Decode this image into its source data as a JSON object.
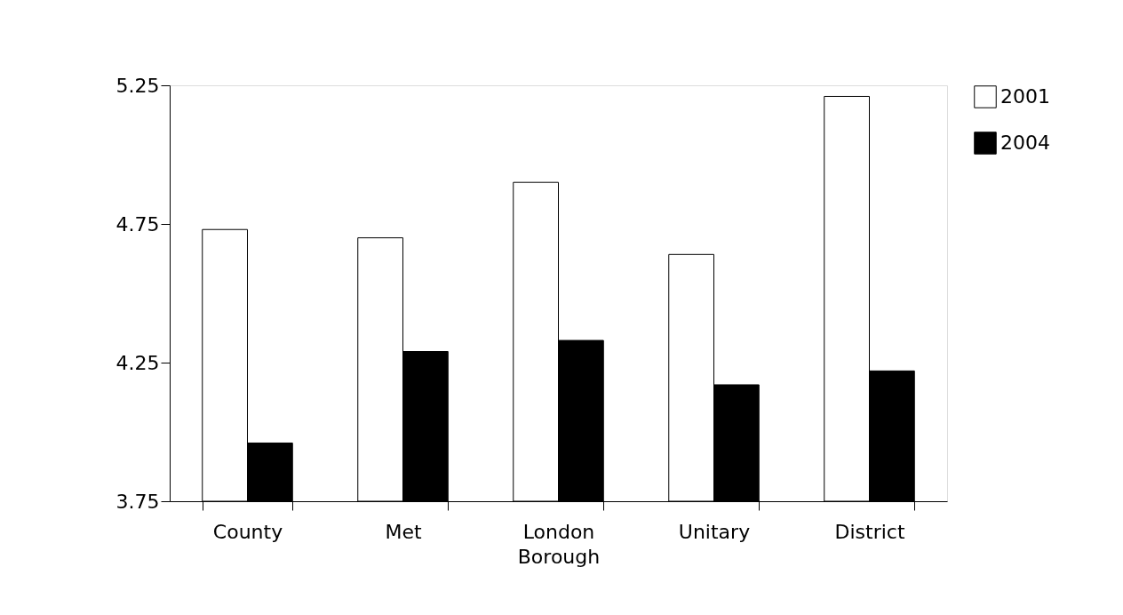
{
  "chart_data": {
    "type": "bar",
    "categories": [
      "County",
      "Met",
      "London Borough",
      "Unitary",
      "District"
    ],
    "series": [
      {
        "name": "2001",
        "color": "#ffffff",
        "values": [
          4.73,
          4.7,
          4.9,
          4.64,
          5.21
        ]
      },
      {
        "name": "2004",
        "color": "#000000",
        "values": [
          3.96,
          4.29,
          4.33,
          4.17,
          4.22
        ]
      }
    ],
    "ylim": [
      3.75,
      5.25
    ],
    "yticks": [
      3.75,
      4.25,
      4.75,
      5.25
    ],
    "grid": false,
    "legend": "right"
  }
}
